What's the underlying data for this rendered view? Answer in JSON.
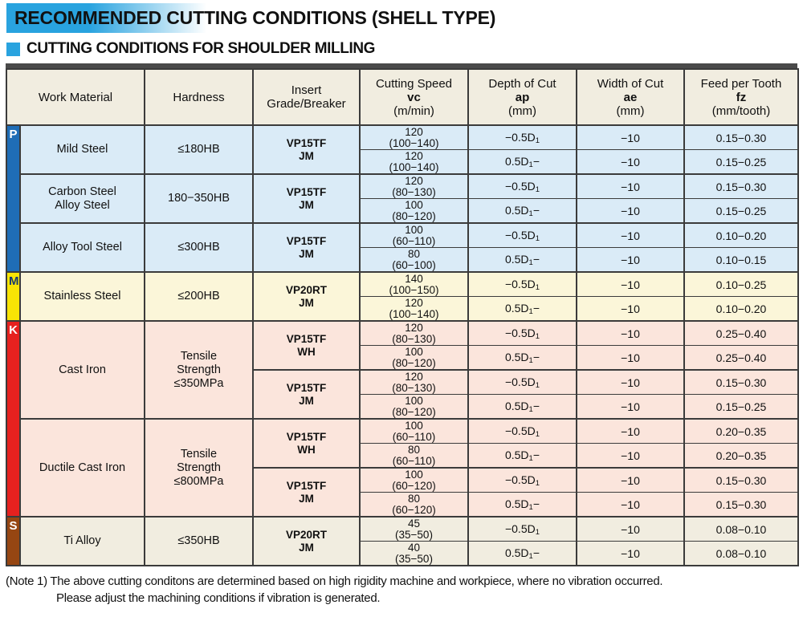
{
  "header": {
    "title": "RECOMMENDED CUTTING CONDITIONS (SHELL TYPE)",
    "subtitle": "CUTTING CONDITIONS FOR SHOULDER MILLING",
    "accent_color": "#29a3df"
  },
  "table": {
    "border_color": "#3b3b3b",
    "header_bg": "#f1ede0",
    "columns": [
      {
        "label_lines": [
          "Work Material"
        ]
      },
      {
        "label_lines": [
          "Hardness"
        ]
      },
      {
        "label_lines": [
          "Insert",
          "Grade/Breaker"
        ]
      },
      {
        "label_lines": [
          "Cutting Speed"
        ],
        "symbol": "vc",
        "unit": "(m/min)"
      },
      {
        "label_lines": [
          "Depth of Cut"
        ],
        "symbol": "ap",
        "unit": "(mm)"
      },
      {
        "label_lines": [
          "Width of Cut"
        ],
        "symbol": "ae",
        "unit": "(mm)"
      },
      {
        "label_lines": [
          "Feed per Tooth"
        ],
        "symbol": "fz",
        "unit": "(mm/tooth)"
      }
    ],
    "sections": [
      {
        "code": "P",
        "bar_color": "#1f6db6",
        "letter_color": "#ffffff",
        "row_bg": "#daebf7",
        "groups": [
          {
            "material_lines": [
              "Mild Steel"
            ],
            "hardness_lines": [
              "≤180HB"
            ],
            "inserts": [
              {
                "grade": "VP15TF",
                "breaker": "JM",
                "rows": [
                  {
                    "vc": "120",
                    "vc_range": "(100−140)",
                    "ap_pre": "−0.5D",
                    "ap_sub": "1",
                    "ap_post": "",
                    "ae": "−10",
                    "fz": "0.15−0.30"
                  },
                  {
                    "vc": "120",
                    "vc_range": "(100−140)",
                    "ap_pre": "0.5D",
                    "ap_sub": "1",
                    "ap_post": "−",
                    "ae": "−10",
                    "fz": "0.15−0.25"
                  }
                ]
              }
            ]
          },
          {
            "material_lines": [
              "Carbon Steel",
              "Alloy Steel"
            ],
            "hardness_lines": [
              "180−350HB"
            ],
            "inserts": [
              {
                "grade": "VP15TF",
                "breaker": "JM",
                "rows": [
                  {
                    "vc": "120",
                    "vc_range": "(80−130)",
                    "ap_pre": "−0.5D",
                    "ap_sub": "1",
                    "ap_post": "",
                    "ae": "−10",
                    "fz": "0.15−0.30"
                  },
                  {
                    "vc": "100",
                    "vc_range": "(80−120)",
                    "ap_pre": "0.5D",
                    "ap_sub": "1",
                    "ap_post": "−",
                    "ae": "−10",
                    "fz": "0.15−0.25"
                  }
                ]
              }
            ]
          },
          {
            "material_lines": [
              "Alloy Tool Steel"
            ],
            "hardness_lines": [
              "≤300HB"
            ],
            "inserts": [
              {
                "grade": "VP15TF",
                "breaker": "JM",
                "rows": [
                  {
                    "vc": "100",
                    "vc_range": "(60−110)",
                    "ap_pre": "−0.5D",
                    "ap_sub": "1",
                    "ap_post": "",
                    "ae": "−10",
                    "fz": "0.10−0.20"
                  },
                  {
                    "vc": "80",
                    "vc_range": "(60−100)",
                    "ap_pre": "0.5D",
                    "ap_sub": "1",
                    "ap_post": "−",
                    "ae": "−10",
                    "fz": "0.10−0.15"
                  }
                ]
              }
            ]
          }
        ]
      },
      {
        "code": "M",
        "bar_color": "#f8e405",
        "letter_color": "#173a70",
        "row_bg": "#fbf6d9",
        "groups": [
          {
            "material_lines": [
              "Stainless Steel"
            ],
            "hardness_lines": [
              "≤200HB"
            ],
            "inserts": [
              {
                "grade": "VP20RT",
                "breaker": "JM",
                "rows": [
                  {
                    "vc": "140",
                    "vc_range": "(100−150)",
                    "ap_pre": "−0.5D",
                    "ap_sub": "1",
                    "ap_post": "",
                    "ae": "−10",
                    "fz": "0.10−0.25"
                  },
                  {
                    "vc": "120",
                    "vc_range": "(100−140)",
                    "ap_pre": "0.5D",
                    "ap_sub": "1",
                    "ap_post": "−",
                    "ae": "−10",
                    "fz": "0.10−0.20"
                  }
                ]
              }
            ]
          }
        ]
      },
      {
        "code": "K",
        "bar_color": "#e6211f",
        "letter_color": "#ffffff",
        "row_bg": "#fbe5dc",
        "groups": [
          {
            "material_lines": [
              "Cast Iron"
            ],
            "hardness_lines": [
              "Tensile",
              "Strength",
              "≤350MPa"
            ],
            "inserts": [
              {
                "grade": "VP15TF",
                "breaker": "WH",
                "rows": [
                  {
                    "vc": "120",
                    "vc_range": "(80−130)",
                    "ap_pre": "−0.5D",
                    "ap_sub": "1",
                    "ap_post": "",
                    "ae": "−10",
                    "fz": "0.25−0.40"
                  },
                  {
                    "vc": "100",
                    "vc_range": "(80−120)",
                    "ap_pre": "0.5D",
                    "ap_sub": "1",
                    "ap_post": "−",
                    "ae": "−10",
                    "fz": "0.25−0.40"
                  }
                ]
              },
              {
                "grade": "VP15TF",
                "breaker": "JM",
                "rows": [
                  {
                    "vc": "120",
                    "vc_range": "(80−130)",
                    "ap_pre": "−0.5D",
                    "ap_sub": "1",
                    "ap_post": "",
                    "ae": "−10",
                    "fz": "0.15−0.30"
                  },
                  {
                    "vc": "100",
                    "vc_range": "(80−120)",
                    "ap_pre": "0.5D",
                    "ap_sub": "1",
                    "ap_post": "−",
                    "ae": "−10",
                    "fz": "0.15−0.25"
                  }
                ]
              }
            ]
          },
          {
            "material_lines": [
              "Ductile Cast Iron"
            ],
            "hardness_lines": [
              "Tensile",
              "Strength",
              "≤800MPa"
            ],
            "inserts": [
              {
                "grade": "VP15TF",
                "breaker": "WH",
                "rows": [
                  {
                    "vc": "100",
                    "vc_range": "(60−110)",
                    "ap_pre": "−0.5D",
                    "ap_sub": "1",
                    "ap_post": "",
                    "ae": "−10",
                    "fz": "0.20−0.35"
                  },
                  {
                    "vc": "80",
                    "vc_range": "(60−110)",
                    "ap_pre": "0.5D",
                    "ap_sub": "1",
                    "ap_post": "−",
                    "ae": "−10",
                    "fz": "0.20−0.35"
                  }
                ]
              },
              {
                "grade": "VP15TF",
                "breaker": "JM",
                "rows": [
                  {
                    "vc": "100",
                    "vc_range": "(60−120)",
                    "ap_pre": "−0.5D",
                    "ap_sub": "1",
                    "ap_post": "",
                    "ae": "−10",
                    "fz": "0.15−0.30"
                  },
                  {
                    "vc": "80",
                    "vc_range": "(60−120)",
                    "ap_pre": "0.5D",
                    "ap_sub": "1",
                    "ap_post": "−",
                    "ae": "−10",
                    "fz": "0.15−0.30"
                  }
                ]
              }
            ]
          }
        ]
      },
      {
        "code": "S",
        "bar_color": "#964612",
        "letter_color": "#ffffff",
        "row_bg": "#f1ede0",
        "groups": [
          {
            "material_lines": [
              "Ti Alloy"
            ],
            "hardness_lines": [
              "≤350HB"
            ],
            "inserts": [
              {
                "grade": "VP20RT",
                "breaker": "JM",
                "rows": [
                  {
                    "vc": "45",
                    "vc_range": "(35−50)",
                    "ap_pre": "−0.5D",
                    "ap_sub": "1",
                    "ap_post": "",
                    "ae": "−10",
                    "fz": "0.08−0.10"
                  },
                  {
                    "vc": "40",
                    "vc_range": "(35−50)",
                    "ap_pre": "0.5D",
                    "ap_sub": "1",
                    "ap_post": "−",
                    "ae": "−10",
                    "fz": "0.08−0.10"
                  }
                ]
              }
            ]
          }
        ]
      }
    ]
  },
  "note": {
    "line1": "(Note 1) The above cutting conditons are determined based on high rigidity machine and workpiece, where no vibration occurred.",
    "line2": "Please adjust the machining conditions if vibration is generated."
  }
}
